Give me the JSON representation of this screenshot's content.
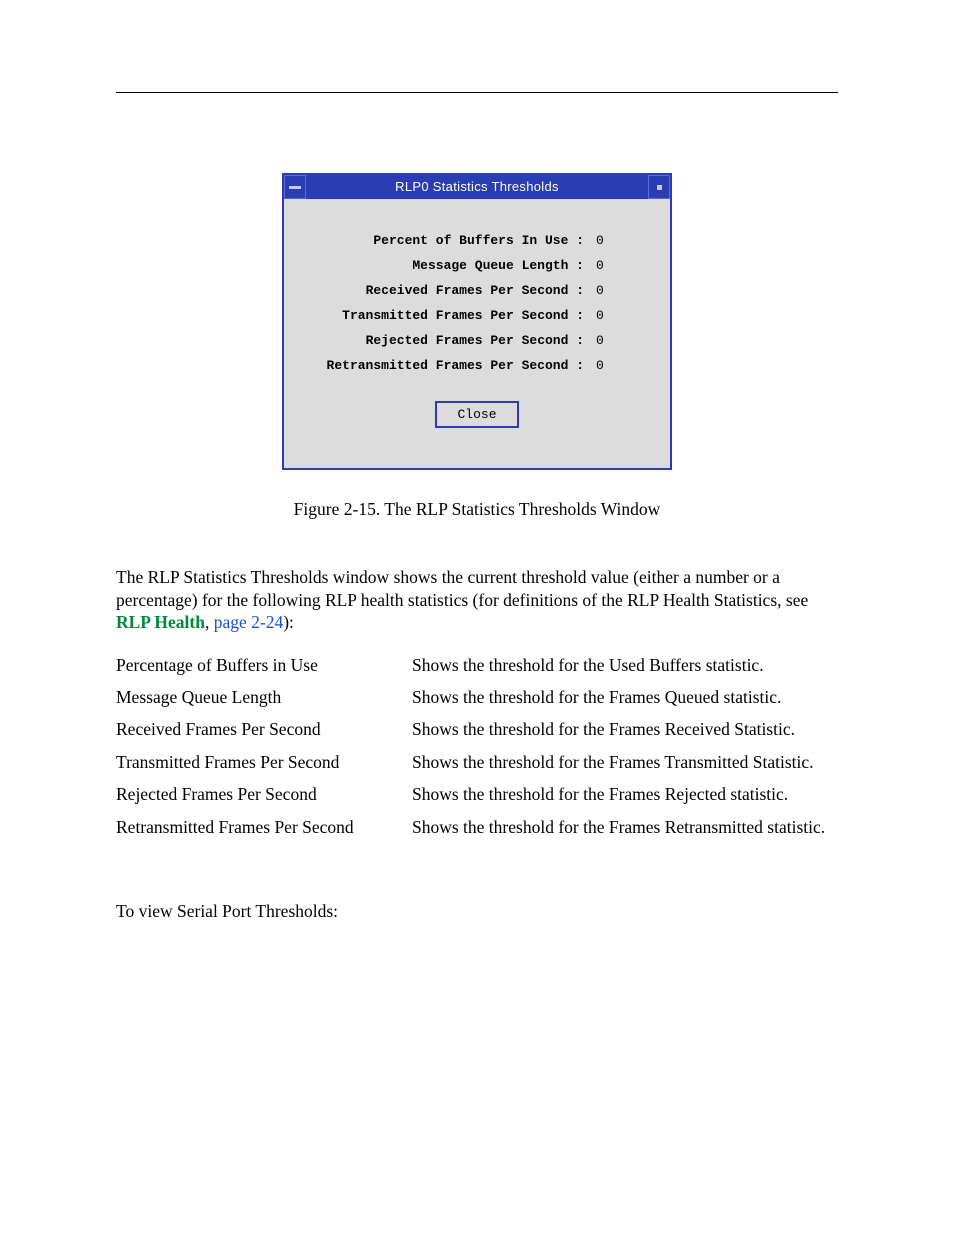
{
  "dialog": {
    "title": "RLP0 Statistics Thresholds",
    "close_label": "Close",
    "stats": [
      {
        "label": "Percent of Buffers In Use :",
        "value": "0"
      },
      {
        "label": "Message Queue Length :",
        "value": "0"
      },
      {
        "label": "Received Frames Per Second :",
        "value": "0"
      },
      {
        "label": "Transmitted Frames Per Second :",
        "value": "0"
      },
      {
        "label": "Rejected Frames Per Second :",
        "value": "0"
      },
      {
        "label": "Retransmitted Frames Per Second :",
        "value": "0"
      }
    ]
  },
  "caption": "Figure 2-15.  The RLP Statistics Thresholds Window",
  "intro_pre": "The RLP Statistics Thresholds window shows the current threshold value (either a number or a percentage) for the following RLP health statistics (for definitions of the RLP Health Statistics, see ",
  "intro_link_green": "RLP Health",
  "intro_sep": ", ",
  "intro_link_blue": "page 2-24",
  "intro_post": "):",
  "definitions": [
    {
      "term": "Percentage of Buffers in Use",
      "desc": "Shows the threshold for the Used Buffers statistic."
    },
    {
      "term": "Message Queue Length",
      "desc": "Shows the threshold for the Frames Queued statistic."
    },
    {
      "term": "Received Frames Per Second",
      "desc": "Shows the threshold for the Frames Received Statistic."
    },
    {
      "term": "Transmitted Frames Per Second",
      "desc": "Shows the threshold for the Frames Transmitted Statistic."
    },
    {
      "term": "Rejected Frames Per Second",
      "desc": "Shows the threshold for the Frames Rejected statistic."
    },
    {
      "term": "Retransmitted Frames Per Second",
      "desc": "Shows the threshold for the Frames Retransmitted statistic."
    }
  ],
  "final_line": "To view Serial Port Thresholds:"
}
